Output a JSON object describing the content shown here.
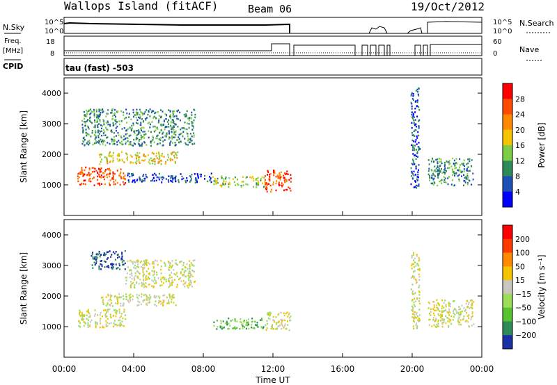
{
  "header": {
    "station": "Wallops Island (fitACF)",
    "beam": "Beam 06",
    "date": "19/Oct/2012"
  },
  "strip_labels": {
    "nsky": "N.Sky",
    "nsearch": "N.Search",
    "freq": "Freq.",
    "freq_unit": "[MHz]",
    "cpid": "CPID",
    "nave": "Nave",
    "left_top": "10^5",
    "left_bottom": "10^0",
    "right_top": "10^5",
    "right_bottom": "10^0",
    "freq_top": "18",
    "freq_bottom": "8",
    "nave_top": "60",
    "nave_bottom": "0",
    "cpid_text": "tau (fast) -503"
  },
  "chart_data": [
    {
      "type": "heatmap",
      "name": "power",
      "ylabel": "Slant Range [km]",
      "ylim": [
        0,
        4500
      ],
      "yticks": [
        "1000",
        "2000",
        "3000",
        "4000"
      ],
      "colorbar_label": "Power [dB]",
      "colorbar_ticks": [
        "4",
        "8",
        "12",
        "16",
        "20",
        "24",
        "28"
      ],
      "colorbar_colors": [
        "#0000ff",
        "#1e4fb4",
        "#2e8b57",
        "#7ccf45",
        "#f5c400",
        "#ff8a00",
        "#ff4a00",
        "#ff0000"
      ],
      "bands": [
        {
          "x0": 0.75,
          "x1": 3.5,
          "y0": 1000,
          "y1": 1600,
          "level": 6
        },
        {
          "x0": 2.0,
          "x1": 6.5,
          "y0": 1700,
          "y1": 2100,
          "level": 4
        },
        {
          "x0": 1.0,
          "x1": 7.5,
          "y0": 2300,
          "y1": 3500,
          "level": 2
        },
        {
          "x0": 3.5,
          "x1": 8.5,
          "y0": 1100,
          "y1": 1400,
          "level": 1
        },
        {
          "x0": 8.5,
          "x1": 11.5,
          "y0": 950,
          "y1": 1300,
          "level": 3
        },
        {
          "x0": 11.5,
          "x1": 13.0,
          "y0": 800,
          "y1": 1500,
          "level": 6
        },
        {
          "x0": 19.9,
          "x1": 20.4,
          "y0": 900,
          "y1": 4200,
          "level": 1
        },
        {
          "x0": 20.9,
          "x1": 23.5,
          "y0": 1000,
          "y1": 1900,
          "level": 2
        }
      ]
    },
    {
      "type": "heatmap",
      "name": "velocity",
      "ylabel": "Slant Range [km]",
      "ylim": [
        0,
        4500
      ],
      "yticks": [
        "1000",
        "2000",
        "3000",
        "4000"
      ],
      "colorbar_label": "Velocity [m s⁻¹]",
      "colorbar_ticks": [
        "200",
        "100",
        "50",
        "15",
        "−15",
        "−50",
        "−100",
        "−200"
      ],
      "colorbar_colors": [
        "#1a2fa6",
        "#2e8b57",
        "#57c42f",
        "#9ade5a",
        "#c8c8c0",
        "#f5c400",
        "#ff8a00",
        "#ff3a00",
        "#ff0000"
      ],
      "xlabel": "Time UT",
      "xticks": [
        "00:00",
        "04:00",
        "08:00",
        "12:00",
        "16:00",
        "20:00",
        "00:00"
      ],
      "xlim": [
        0,
        24
      ],
      "bands": [
        {
          "x0": 0.75,
          "x1": 3.5,
          "y0": 1000,
          "y1": 1600,
          "level": 4
        },
        {
          "x0": 2.0,
          "x1": 6.5,
          "y0": 1700,
          "y1": 2100,
          "level": 4
        },
        {
          "x0": 1.5,
          "x1": 3.5,
          "y0": 2900,
          "y1": 3500,
          "level": 0
        },
        {
          "x0": 3.5,
          "x1": 7.5,
          "y0": 2300,
          "y1": 3200,
          "level": 4
        },
        {
          "x0": 8.5,
          "x1": 11.5,
          "y0": 950,
          "y1": 1300,
          "level": 2
        },
        {
          "x0": 11.5,
          "x1": 13.0,
          "y0": 900,
          "y1": 1500,
          "level": 4
        },
        {
          "x0": 19.9,
          "x1": 20.4,
          "y0": 900,
          "y1": 3500,
          "level": 4
        },
        {
          "x0": 20.9,
          "x1": 23.5,
          "y0": 1000,
          "y1": 1900,
          "level": 4
        }
      ]
    }
  ]
}
